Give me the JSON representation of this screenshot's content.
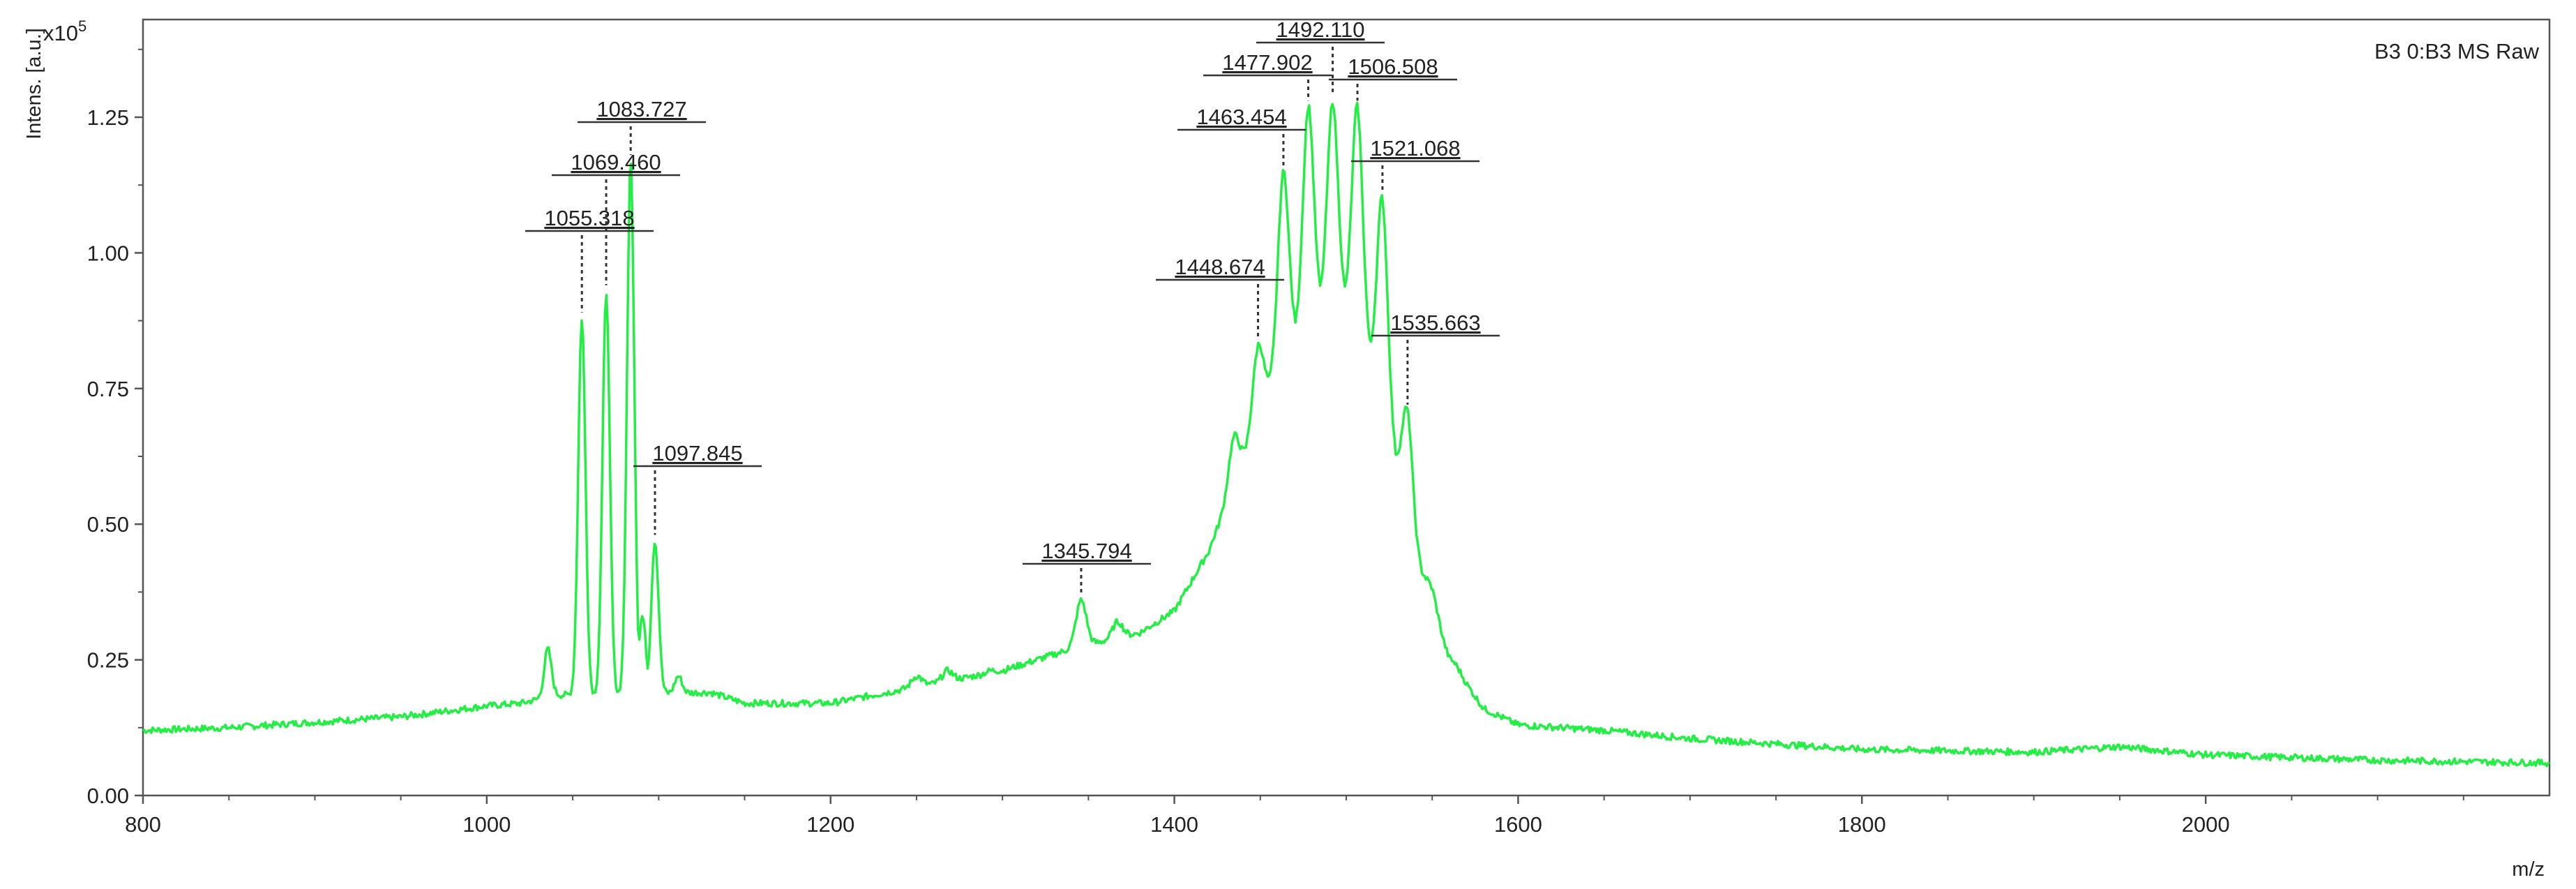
{
  "chart_data": {
    "type": "line",
    "title": "",
    "legend": "B3 0:B3 MS Raw",
    "legend_placement": "top-right",
    "xlabel": "m/z",
    "ylabel": "Intens. [a.u.]",
    "y_multiplier": "x10",
    "y_multiplier_exponent": "5",
    "xlim": [
      800,
      2200
    ],
    "ylim": [
      0,
      1.43
    ],
    "xticks": [
      800,
      1000,
      1200,
      1400,
      1600,
      1800,
      2000
    ],
    "xtick_labels": [
      "800",
      "1000",
      "1200",
      "1400",
      "1600",
      "1800",
      "2000"
    ],
    "yticks": [
      0,
      0.25,
      0.5,
      0.75,
      1.0,
      1.25
    ],
    "ytick_labels": [
      "0.00",
      "0.25",
      "0.50",
      "0.75",
      "1.00",
      "1.25"
    ],
    "grid": false,
    "line_color": "#22ee44",
    "baseline": [
      [
        800,
        0.12
      ],
      [
        850,
        0.125
      ],
      [
        900,
        0.135
      ],
      [
        950,
        0.145
      ],
      [
        1000,
        0.165
      ],
      [
        1020,
        0.17
      ],
      [
        1040,
        0.185
      ],
      [
        1130,
        0.19
      ],
      [
        1150,
        0.17
      ],
      [
        1200,
        0.17
      ],
      [
        1250,
        0.2
      ],
      [
        1300,
        0.23
      ],
      [
        1340,
        0.27
      ],
      [
        1380,
        0.3
      ],
      [
        1400,
        0.34
      ],
      [
        1420,
        0.45
      ],
      [
        1440,
        0.62
      ],
      [
        1460,
        0.8
      ],
      [
        1480,
        0.9
      ],
      [
        1492,
        0.93
      ],
      [
        1505,
        0.9
      ],
      [
        1520,
        0.75
      ],
      [
        1540,
        0.45
      ],
      [
        1560,
        0.25
      ],
      [
        1580,
        0.16
      ],
      [
        1600,
        0.13
      ],
      [
        1650,
        0.12
      ],
      [
        1700,
        0.105
      ],
      [
        1800,
        0.085
      ],
      [
        1900,
        0.08
      ],
      [
        1950,
        0.09
      ],
      [
        2000,
        0.075
      ],
      [
        2100,
        0.065
      ],
      [
        2200,
        0.06
      ]
    ],
    "peaks": [
      {
        "mz": 1035.5,
        "intensity": 0.27
      },
      {
        "mz": 1055.318,
        "intensity": 0.88,
        "label": "1055.318"
      },
      {
        "mz": 1069.46,
        "intensity": 0.93,
        "label": "1069.460"
      },
      {
        "mz": 1083.727,
        "intensity": 1.17,
        "label": "1083.727"
      },
      {
        "mz": 1090.5,
        "intensity": 0.33
      },
      {
        "mz": 1097.845,
        "intensity": 0.47,
        "label": "1097.845"
      },
      {
        "mz": 1111.5,
        "intensity": 0.22
      },
      {
        "mz": 1250,
        "intensity": 0.22
      },
      {
        "mz": 1268,
        "intensity": 0.23
      },
      {
        "mz": 1293,
        "intensity": 0.23
      },
      {
        "mz": 1345.794,
        "intensity": 0.36,
        "label": "1345.794"
      },
      {
        "mz": 1367,
        "intensity": 0.32
      },
      {
        "mz": 1434.5,
        "intensity": 0.66
      },
      {
        "mz": 1448.674,
        "intensity": 0.83,
        "label": "1448.674"
      },
      {
        "mz": 1463.454,
        "intensity": 1.15,
        "label": "1463.454"
      },
      {
        "mz": 1477.902,
        "intensity": 1.27,
        "label": "1477.902"
      },
      {
        "mz": 1492.11,
        "intensity": 1.28,
        "label": "1492.110"
      },
      {
        "mz": 1506.508,
        "intensity": 1.27,
        "label": "1506.508"
      },
      {
        "mz": 1521.068,
        "intensity": 1.1,
        "label": "1521.068"
      },
      {
        "mz": 1535.663,
        "intensity": 0.71,
        "label": "1535.663"
      },
      {
        "mz": 1550,
        "intensity": 0.38
      },
      {
        "mz": 1564,
        "intensity": 0.24
      }
    ]
  }
}
